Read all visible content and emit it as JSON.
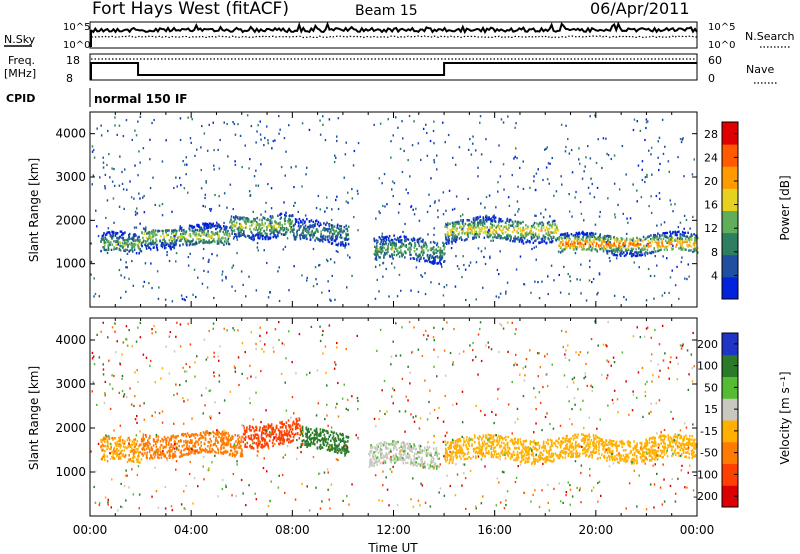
{
  "header": {
    "title": "Fort Hays West (fitACF)",
    "beam": "Beam 15",
    "date": "06/Apr/2011"
  },
  "summary_panels": {
    "nsky_label": "N.Sky",
    "nsky_top_tick": "10^5",
    "nsky_bottom_tick": "10^0",
    "nsearch_label": "N.Search",
    "freq_label_1": "Freq.",
    "freq_label_2": "[MHz]",
    "freq_top_tick": "18",
    "freq_bottom_tick": "8",
    "nave_label": "Nave",
    "nave_top_tick": "60",
    "nave_bottom_tick": "0",
    "cpid_label": "CPID",
    "cpid_value": "normal 150 IF"
  },
  "chart_data": [
    {
      "type": "heatmap",
      "name": "power",
      "ylabel": "Slant Range [km]",
      "ylim": [
        0,
        4500
      ],
      "y_ticks": [
        "1000",
        "2000",
        "3000",
        "4000"
      ],
      "colorbar_label": "Power [dB]",
      "colorbar_ticks": [
        "4",
        "8",
        "12",
        "16",
        "20",
        "24",
        "28"
      ],
      "colorbar_range": [
        0,
        30
      ],
      "colors": [
        "#0022dd",
        "#1f4fa0",
        "#2e7f60",
        "#5fae5a",
        "#e6d21e",
        "#ff9a00",
        "#ff5a00",
        "#e00000"
      ],
      "bands": [
        {
          "t_start": 0.4,
          "t_end": 2.0,
          "range": 1480,
          "spread": 220,
          "level": 12
        },
        {
          "t_start": 2.0,
          "t_end": 5.5,
          "range": 1650,
          "spread": 230,
          "level": 14
        },
        {
          "t_start": 5.5,
          "t_end": 8.0,
          "range": 1900,
          "spread": 260,
          "level": 13
        },
        {
          "t_start": 8.0,
          "t_end": 10.2,
          "range": 1750,
          "spread": 240,
          "level": 9
        },
        {
          "t_start": 11.2,
          "t_end": 14.0,
          "range": 1350,
          "spread": 260,
          "level": 11
        },
        {
          "t_start": 14.0,
          "t_end": 18.5,
          "range": 1800,
          "spread": 250,
          "level": 16
        },
        {
          "t_start": 18.5,
          "t_end": 24.0,
          "range": 1480,
          "spread": 210,
          "level": 20
        }
      ]
    },
    {
      "type": "heatmap",
      "name": "velocity",
      "xlabel": "Time UT",
      "ylabel": "Slant Range [km]",
      "ylim": [
        0,
        4500
      ],
      "x_ticks": [
        "00:00",
        "04:00",
        "08:00",
        "12:00",
        "16:00",
        "20:00",
        "00:00"
      ],
      "y_ticks": [
        "1000",
        "2000",
        "3000",
        "4000"
      ],
      "colorbar_label": "Velocity [m s⁻¹]",
      "colorbar_ticks": [
        "200",
        "100",
        "50",
        "15",
        "-15",
        "-50",
        "-100",
        "-200"
      ],
      "colors": [
        "#1f35c8",
        "#2a7a2a",
        "#55bb33",
        "#c8c8c0",
        "#ffb000",
        "#ff7a00",
        "#ff4000",
        "#dd0000"
      ],
      "bands": [
        {
          "t_start": 0.4,
          "t_end": 2.0,
          "range": 1500,
          "spread": 260,
          "velocity": -10
        },
        {
          "t_start": 2.0,
          "t_end": 6.0,
          "range": 1650,
          "spread": 260,
          "velocity": -30
        },
        {
          "t_start": 6.0,
          "t_end": 8.3,
          "range": 1900,
          "spread": 260,
          "velocity": -70
        },
        {
          "t_start": 8.3,
          "t_end": 10.2,
          "range": 1750,
          "spread": 230,
          "velocity": 150
        },
        {
          "t_start": 11.0,
          "t_end": 13.8,
          "range": 1400,
          "spread": 250,
          "velocity": 40
        },
        {
          "t_start": 14.0,
          "t_end": 24.0,
          "range": 1550,
          "spread": 260,
          "velocity": 0
        }
      ]
    }
  ]
}
